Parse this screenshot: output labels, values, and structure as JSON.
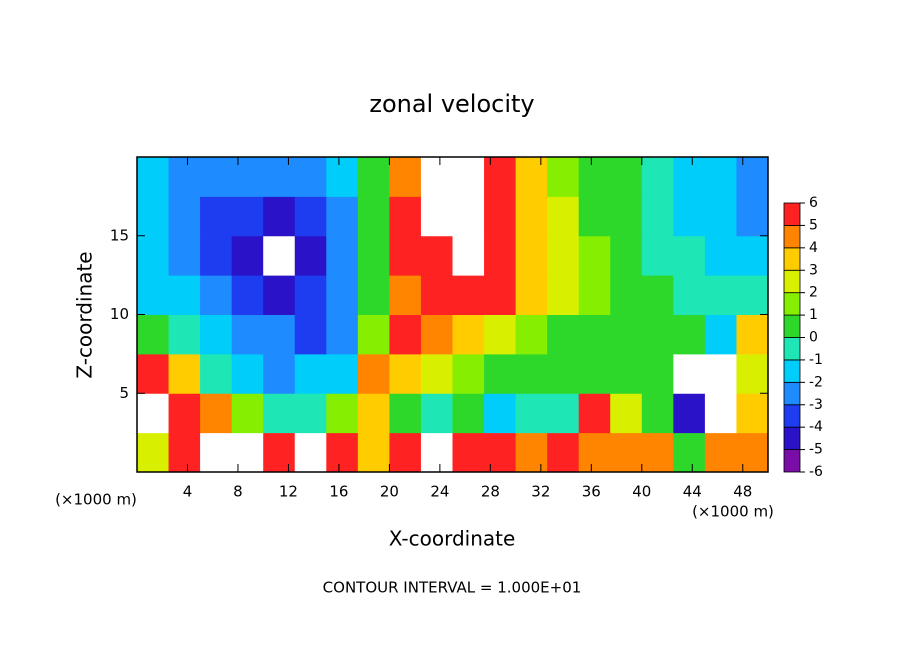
{
  "chart_data": {
    "type": "contour",
    "title": "zonal velocity",
    "xlabel": "X-coordinate",
    "ylabel": "Z-coordinate",
    "x_unit": "(×1000 m)",
    "y_unit": "(×1000 m)",
    "footnote": "CONTOUR INTERVAL = 1.000E+01",
    "xlim": [
      0,
      50
    ],
    "ylim": [
      0,
      20
    ],
    "xticks": [
      4,
      8,
      12,
      16,
      20,
      24,
      28,
      32,
      36,
      40,
      44,
      48
    ],
    "yticks": [
      5,
      10,
      15
    ],
    "levels": [
      -6,
      -5,
      -4,
      -3,
      -2,
      -1,
      0,
      1,
      2,
      3,
      4,
      5,
      6
    ],
    "colors": [
      "#7a0ca8",
      "#2a12c8",
      "#1e3cf0",
      "#1e8cff",
      "#00cdfa",
      "#1ee6b4",
      "#2ed82a",
      "#86ee00",
      "#d8f000",
      "#ffcc00",
      "#ff8400",
      "#ff2222"
    ],
    "field": {
      "x_edges": [
        0,
        2.5,
        5,
        7.5,
        10,
        12.5,
        15,
        17.5,
        20,
        22.5,
        25,
        27.5,
        30,
        32.5,
        35,
        37.5,
        40,
        42.5,
        45,
        47.5,
        50
      ],
      "z_edges": [
        0,
        2.5,
        5,
        7.5,
        10,
        12.5,
        15,
        17.5,
        20
      ],
      "values": [
        [
          2,
          5,
          7,
          7,
          5,
          7,
          5,
          3,
          5,
          7,
          6,
          6,
          4,
          5,
          4,
          4,
          4,
          0,
          4,
          4
        ],
        [
          7,
          6,
          4,
          1,
          -1,
          -1,
          1,
          3,
          0,
          -1,
          0,
          -2,
          -1,
          -1,
          5,
          2,
          0,
          -5,
          7,
          3
        ],
        [
          5,
          3,
          -1,
          -2,
          -3,
          -2,
          -2,
          4,
          3,
          2,
          1,
          0,
          0,
          0,
          0,
          0,
          0,
          7,
          7,
          2
        ],
        [
          0,
          -1,
          -2,
          -3,
          -3,
          -4,
          -3,
          1,
          6,
          4,
          3,
          2,
          1,
          0,
          0,
          0,
          0,
          0,
          -2,
          3
        ],
        [
          -2,
          -2,
          -3,
          -4,
          -5,
          -4,
          -3,
          0,
          4,
          5,
          6,
          5,
          3,
          2,
          1,
          0,
          0,
          -1,
          -1,
          -1
        ],
        [
          -2,
          -3,
          -4,
          -5,
          -7,
          -5,
          -3,
          0,
          5,
          6,
          7,
          5,
          3,
          2,
          1,
          0,
          -1,
          -1,
          -2,
          -2
        ],
        [
          -2,
          -3,
          -4,
          -4,
          -5,
          -4,
          -3,
          0,
          5,
          7,
          7,
          5,
          3,
          2,
          0,
          0,
          -1,
          -2,
          -2,
          -3
        ],
        [
          -2,
          -3,
          -3,
          -3,
          -3,
          -3,
          -2,
          0,
          4,
          7,
          7,
          5,
          3,
          1,
          0,
          0,
          -1,
          -2,
          -2,
          -3
        ]
      ]
    }
  }
}
